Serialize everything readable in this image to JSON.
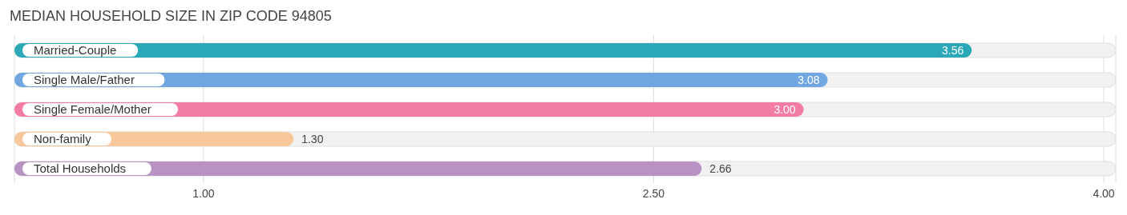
{
  "chart_data": {
    "type": "bar",
    "orientation": "horizontal",
    "title": "MEDIAN HOUSEHOLD SIZE IN ZIP CODE 94805",
    "categories": [
      "Married-Couple",
      "Single Male/Father",
      "Single Female/Mother",
      "Non-family",
      "Total Households"
    ],
    "values": [
      3.56,
      3.08,
      3.0,
      1.3,
      2.66
    ],
    "colors": [
      "#2aa8b8",
      "#70a7e1",
      "#f27ca2",
      "#f8c89b",
      "#b992c4"
    ],
    "xlim": [
      0.37,
      4.04
    ],
    "xticks": [
      {
        "value": 1,
        "label": "1.00"
      },
      {
        "value": 2.5,
        "label": "2.50"
      },
      {
        "value": 4,
        "label": "4.00"
      }
    ],
    "value_labels": [
      "3.56",
      "3.08",
      "3.00",
      "1.30",
      "2.66"
    ],
    "grid": "x"
  }
}
